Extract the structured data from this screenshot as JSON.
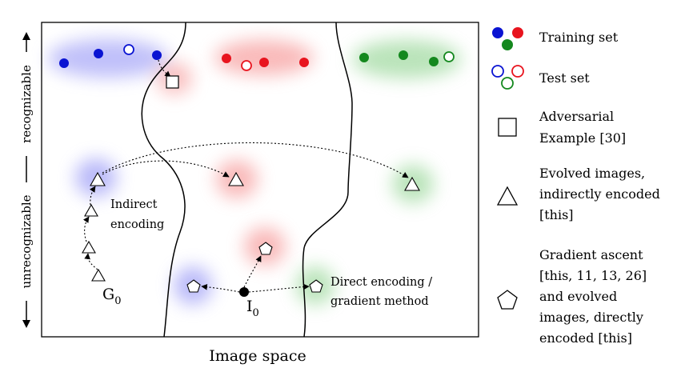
{
  "axis": {
    "y_top": "recognizable",
    "y_bottom": "unrecognizable",
    "x": "Image space"
  },
  "annotations": {
    "indirect_1": "Indirect",
    "indirect_2": "encoding",
    "g0_main": "G",
    "g0_sub": "0",
    "i0_main": "I",
    "i0_sub": "0",
    "direct_1": "Direct encoding /",
    "direct_2": "gradient method"
  },
  "legend": {
    "training": "Training set",
    "test": "Test set",
    "adversarial_1": "Adversarial",
    "adversarial_2": "Example [30]",
    "evolved_1": "Evolved images,",
    "evolved_2": "indirectly encoded",
    "evolved_3": "[this]",
    "gradient_1": "Gradient ascent",
    "gradient_2": "[this, 11, 13, 26]",
    "gradient_3": "and evolved",
    "gradient_4": "images, directly",
    "gradient_5": "encoded [this]"
  },
  "colors": {
    "blue": "#0a14d2",
    "red": "#e8141e",
    "green": "#14881e",
    "blue_glow": "#8c8cf5",
    "red_glow": "#f58c8c",
    "green_glow": "#8cd28c"
  }
}
